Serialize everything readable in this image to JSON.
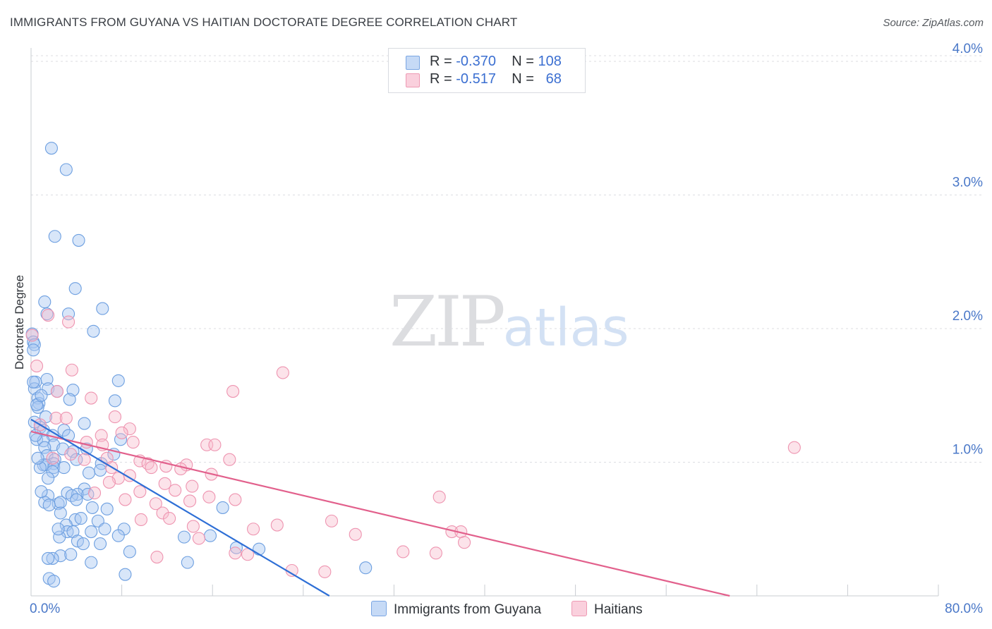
{
  "header": {
    "title": "IMMIGRANTS FROM GUYANA VS HAITIAN DOCTORATE DEGREE CORRELATION CHART",
    "source": "Source: ZipAtlas.com"
  },
  "legend": {
    "guyana": {
      "r_label": "R = ",
      "r_value": "-0.370",
      "n_label": "N = ",
      "n_value": "108"
    },
    "haitians": {
      "r_label": "R = ",
      "r_value": "-0.517",
      "n_label": "N = ",
      "n_value": "68"
    }
  },
  "watermark": {
    "zip": "ZIP",
    "atlas": "atlas"
  },
  "colors": {
    "guyana_fill": "#a9c8f2",
    "guyana_stroke": "#6d9fe0",
    "guyana_line": "#2e6fd6",
    "haiti_fill": "#f7bccd",
    "haiti_stroke": "#ee94b0",
    "haiti_line": "#e2608c",
    "grid": "#dcdde2",
    "tick_text": "#4a78c8"
  },
  "chart_data": {
    "type": "scatter",
    "title": "IMMIGRANTS FROM GUYANA VS HAITIAN DOCTORATE DEGREE CORRELATION CHART",
    "xlabel": "",
    "ylabel": "Doctorate Degree",
    "xlim": [
      0,
      80
    ],
    "ylim": [
      0,
      4.2
    ],
    "x_tick_labels": {
      "min": "0.0%",
      "max": "80.0%"
    },
    "y_ticks": [
      {
        "value": 1,
        "label": "1.0%"
      },
      {
        "value": 2,
        "label": "2.0%"
      },
      {
        "value": 3,
        "label": "3.0%"
      },
      {
        "value": 4,
        "label": "4.0%"
      }
    ],
    "grid": true,
    "legend_position": "top-center",
    "series": [
      {
        "name": "Immigrants from Guyana",
        "r": -0.37,
        "n": 108,
        "trend": {
          "x": [
            0,
            26.3
          ],
          "y": [
            1.32,
            0.0
          ]
        },
        "points": [
          [
            1.8,
            3.35
          ],
          [
            3.1,
            3.19
          ],
          [
            2.1,
            2.69
          ],
          [
            4.2,
            2.66
          ],
          [
            3.9,
            2.3
          ],
          [
            1.2,
            2.2
          ],
          [
            6.3,
            2.15
          ],
          [
            1.4,
            2.11
          ],
          [
            3.3,
            2.11
          ],
          [
            5.5,
            1.98
          ],
          [
            0.1,
            1.96
          ],
          [
            0.2,
            1.9
          ],
          [
            0.3,
            1.88
          ],
          [
            0.2,
            1.84
          ],
          [
            7.7,
            1.61
          ],
          [
            1.4,
            1.62
          ],
          [
            0.4,
            1.6
          ],
          [
            0.3,
            1.55
          ],
          [
            1.5,
            1.55
          ],
          [
            2.3,
            1.53
          ],
          [
            3.7,
            1.54
          ],
          [
            0.6,
            1.48
          ],
          [
            3.4,
            1.47
          ],
          [
            7.4,
            1.46
          ],
          [
            0.7,
            1.44
          ],
          [
            0.6,
            1.41
          ],
          [
            1.3,
            1.34
          ],
          [
            4.7,
            1.29
          ],
          [
            0.8,
            1.26
          ],
          [
            2.9,
            1.24
          ],
          [
            1.1,
            1.24
          ],
          [
            1.9,
            1.2
          ],
          [
            3.3,
            1.2
          ],
          [
            0.5,
            1.17
          ],
          [
            7.9,
            1.17
          ],
          [
            1.1,
            1.16
          ],
          [
            2.0,
            1.13
          ],
          [
            1.2,
            1.11
          ],
          [
            2.8,
            1.1
          ],
          [
            4.9,
            1.1
          ],
          [
            3.7,
            1.08
          ],
          [
            1.4,
            1.05
          ],
          [
            7.3,
            1.06
          ],
          [
            2.1,
            1.02
          ],
          [
            4.0,
            1.02
          ],
          [
            2.0,
            0.99
          ],
          [
            1.1,
            0.98
          ],
          [
            1.3,
            0.98
          ],
          [
            6.2,
            0.99
          ],
          [
            2.0,
            0.96
          ],
          [
            2.9,
            0.96
          ],
          [
            1.9,
            0.93
          ],
          [
            5.1,
            0.92
          ],
          [
            6.1,
            0.94
          ],
          [
            1.5,
            0.88
          ],
          [
            4.7,
            0.8
          ],
          [
            3.2,
            0.77
          ],
          [
            1.5,
            0.75
          ],
          [
            4.1,
            0.76
          ],
          [
            5.0,
            0.76
          ],
          [
            3.6,
            0.75
          ],
          [
            4.0,
            0.72
          ],
          [
            1.2,
            0.7
          ],
          [
            2.4,
            0.69
          ],
          [
            2.6,
            0.7
          ],
          [
            5.4,
            0.66
          ],
          [
            6.7,
            0.65
          ],
          [
            16.9,
            0.66
          ],
          [
            3.9,
            0.57
          ],
          [
            5.9,
            0.56
          ],
          [
            6.5,
            0.5
          ],
          [
            8.2,
            0.5
          ],
          [
            3.1,
            0.53
          ],
          [
            3.2,
            0.48
          ],
          [
            3.7,
            0.48
          ],
          [
            5.3,
            0.48
          ],
          [
            7.7,
            0.45
          ],
          [
            15.8,
            0.45
          ],
          [
            13.5,
            0.44
          ],
          [
            2.5,
            0.44
          ],
          [
            4.1,
            0.41
          ],
          [
            4.6,
            0.39
          ],
          [
            18.1,
            0.36
          ],
          [
            8.7,
            0.33
          ],
          [
            2.6,
            0.3
          ],
          [
            1.9,
            0.28
          ],
          [
            5.3,
            0.25
          ],
          [
            13.8,
            0.25
          ],
          [
            1.5,
            0.28
          ],
          [
            3.5,
            0.31
          ],
          [
            8.3,
            0.16
          ],
          [
            1.6,
            0.13
          ],
          [
            2.0,
            0.11
          ],
          [
            29.5,
            0.21
          ],
          [
            20.1,
            0.35
          ],
          [
            6.1,
            0.39
          ],
          [
            2.4,
            0.5
          ],
          [
            4.4,
            0.58
          ],
          [
            2.6,
            0.62
          ],
          [
            1.6,
            0.68
          ],
          [
            0.9,
            0.78
          ],
          [
            0.8,
            0.96
          ],
          [
            0.6,
            1.03
          ],
          [
            0.4,
            1.2
          ],
          [
            0.3,
            1.3
          ],
          [
            0.5,
            1.43
          ],
          [
            0.2,
            1.6
          ],
          [
            0.9,
            1.5
          ]
        ]
      },
      {
        "name": "Haitians",
        "r": -0.517,
        "n": 68,
        "trend": {
          "x": [
            0,
            61.6
          ],
          "y": [
            1.23,
            0.0
          ]
        },
        "points": [
          [
            0.1,
            1.95
          ],
          [
            1.5,
            2.1
          ],
          [
            3.3,
            2.05
          ],
          [
            0.5,
            1.72
          ],
          [
            3.6,
            1.69
          ],
          [
            22.2,
            1.67
          ],
          [
            17.8,
            1.53
          ],
          [
            2.3,
            1.53
          ],
          [
            5.3,
            1.48
          ],
          [
            2.2,
            1.33
          ],
          [
            3.1,
            1.33
          ],
          [
            7.4,
            1.34
          ],
          [
            8.7,
            1.25
          ],
          [
            6.2,
            1.2
          ],
          [
            8.0,
            1.22
          ],
          [
            4.9,
            1.15
          ],
          [
            6.3,
            1.13
          ],
          [
            15.5,
            1.13
          ],
          [
            16.2,
            1.13
          ],
          [
            67.3,
            1.11
          ],
          [
            9.0,
            1.15
          ],
          [
            3.5,
            1.06
          ],
          [
            4.7,
            1.02
          ],
          [
            6.7,
            1.03
          ],
          [
            9.6,
            1.01
          ],
          [
            10.3,
            0.99
          ],
          [
            11.9,
            0.97
          ],
          [
            13.7,
            0.98
          ],
          [
            17.5,
            1.02
          ],
          [
            10.6,
            0.96
          ],
          [
            7.1,
            0.96
          ],
          [
            13.2,
            0.95
          ],
          [
            15.9,
            0.91
          ],
          [
            7.7,
            0.88
          ],
          [
            8.7,
            0.9
          ],
          [
            6.9,
            0.85
          ],
          [
            11.8,
            0.84
          ],
          [
            14.2,
            0.82
          ],
          [
            12.7,
            0.79
          ],
          [
            9.6,
            0.78
          ],
          [
            5.6,
            0.77
          ],
          [
            15.7,
            0.74
          ],
          [
            18.0,
            0.72
          ],
          [
            36.0,
            0.74
          ],
          [
            11.0,
            0.69
          ],
          [
            14.0,
            0.71
          ],
          [
            8.3,
            0.72
          ],
          [
            11.6,
            0.62
          ],
          [
            12.2,
            0.58
          ],
          [
            9.7,
            0.57
          ],
          [
            26.5,
            0.56
          ],
          [
            21.7,
            0.53
          ],
          [
            19.6,
            0.5
          ],
          [
            14.3,
            0.52
          ],
          [
            37.1,
            0.48
          ],
          [
            28.6,
            0.46
          ],
          [
            37.9,
            0.48
          ],
          [
            32.8,
            0.33
          ],
          [
            35.7,
            0.32
          ],
          [
            38.2,
            0.4
          ],
          [
            14.8,
            0.43
          ],
          [
            18.0,
            0.32
          ],
          [
            19.1,
            0.31
          ],
          [
            11.1,
            0.29
          ],
          [
            25.9,
            0.18
          ],
          [
            23.0,
            0.19
          ],
          [
            1.9,
            1.03
          ],
          [
            0.8,
            1.28
          ]
        ]
      }
    ]
  }
}
